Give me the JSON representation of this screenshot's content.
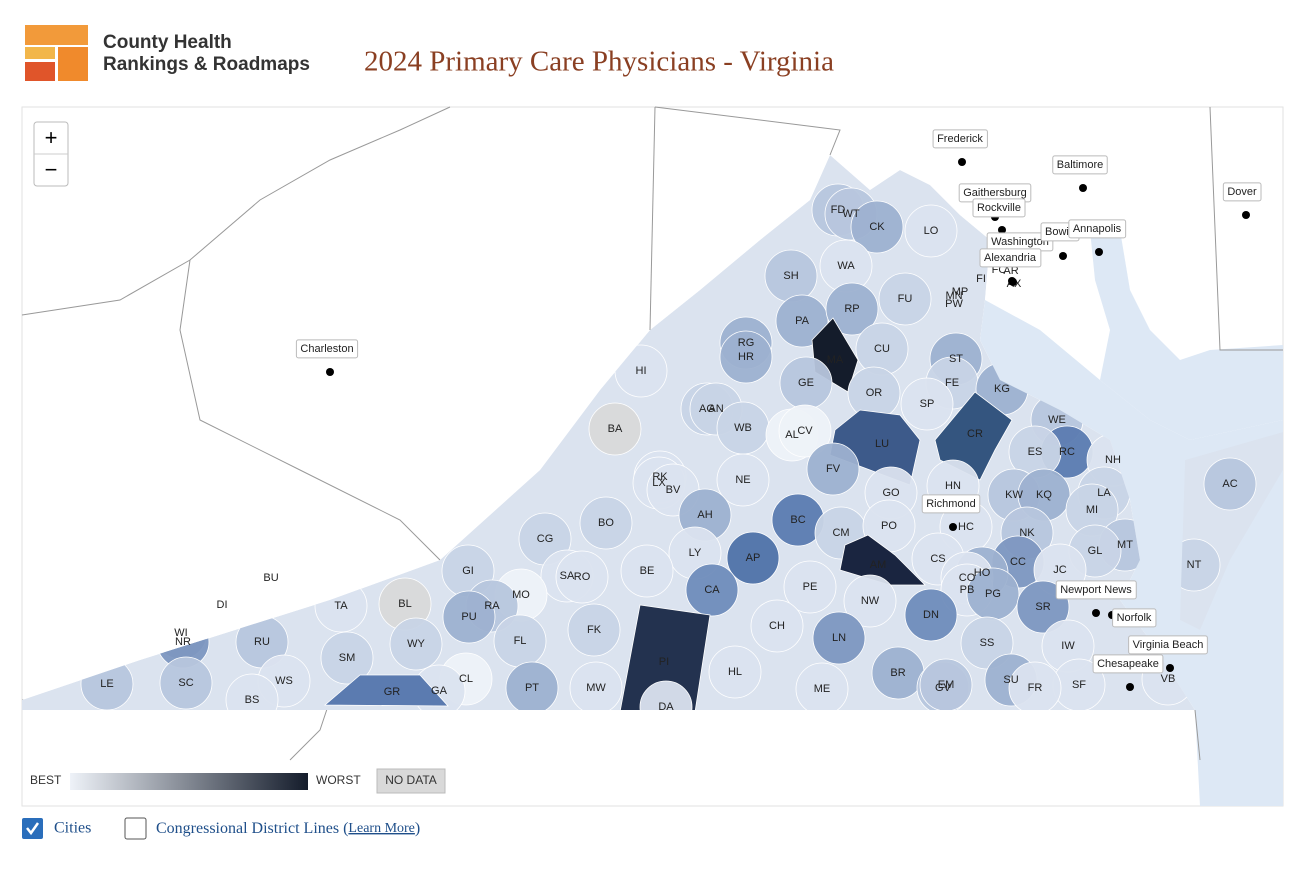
{
  "header": {
    "logo_line1": "County Health",
    "logo_line2": "Rankings & Roadmaps",
    "title": "2024 Primary Care Physicians - Virginia"
  },
  "map": {
    "zoom_in": "+",
    "zoom_out": "−",
    "counties": [
      {
        "label": "FD",
        "color": "#b7c6dd"
      },
      {
        "label": "WT",
        "color": "#b7c6dd"
      },
      {
        "label": "CK",
        "color": "#9db1d0"
      },
      {
        "label": "LO",
        "color": "#dbe3ef"
      },
      {
        "label": "SH",
        "color": "#b7c6dd"
      },
      {
        "label": "WA",
        "color": "#dbe3ef"
      },
      {
        "label": "FU",
        "color": "#c8d4e6"
      },
      {
        "label": "PA",
        "color": "#9db1d0"
      },
      {
        "label": "RP",
        "color": "#9db1d0"
      },
      {
        "label": "MA",
        "color": "#141c2b"
      },
      {
        "label": "CU",
        "color": "#c8d4e6"
      },
      {
        "label": "RG",
        "color": "#9db1d0"
      },
      {
        "label": "HR",
        "color": "#9db1d0"
      },
      {
        "label": "HI",
        "color": "#dbe3ef"
      },
      {
        "label": "GE",
        "color": "#b7c6dd"
      },
      {
        "label": "OR",
        "color": "#c8d4e6"
      },
      {
        "label": "ST",
        "color": "#9db1d0"
      },
      {
        "label": "FE",
        "color": "#c8d4e6"
      },
      {
        "label": "KG",
        "color": "#9db1d0"
      },
      {
        "label": "SP",
        "color": "#dbe3ef"
      },
      {
        "label": "BA",
        "color": "#d9d9d9"
      },
      {
        "label": "AG",
        "color": "#c8d4e6"
      },
      {
        "label": "AN",
        "color": "#c8d4e6"
      },
      {
        "label": "WB",
        "color": "#c8d4e6"
      },
      {
        "label": "AL",
        "color": "#eef2f8"
      },
      {
        "label": "CV",
        "color": "#eef2f8"
      },
      {
        "label": "LU",
        "color": "#3d5a8a"
      },
      {
        "label": "CR",
        "color": "#34557f"
      },
      {
        "label": "WE",
        "color": "#b7c6dd"
      },
      {
        "label": "RC",
        "color": "#5b7bb0"
      },
      {
        "label": "ES",
        "color": "#c8d4e6"
      },
      {
        "label": "NH",
        "color": "#dbe3ef"
      },
      {
        "label": "AC",
        "color": "#b7c6dd"
      },
      {
        "label": "FV",
        "color": "#9db1d0"
      },
      {
        "label": "NE",
        "color": "#dbe3ef"
      },
      {
        "label": "RK",
        "color": "#dbe3ef"
      },
      {
        "label": "LX",
        "color": "#dbe3ef"
      },
      {
        "label": "BV",
        "color": "#dbe3ef"
      },
      {
        "label": "HN",
        "color": "#dbe3ef"
      },
      {
        "label": "GO",
        "color": "#dbe3ef"
      },
      {
        "label": "KW",
        "color": "#b7c6dd"
      },
      {
        "label": "KQ",
        "color": "#9db1d0"
      },
      {
        "label": "LA",
        "color": "#c8d4e6"
      },
      {
        "label": "MI",
        "color": "#c8d4e6"
      },
      {
        "label": "AH",
        "color": "#9db1d0"
      },
      {
        "label": "BC",
        "color": "#5b7bb0"
      },
      {
        "label": "CM",
        "color": "#c8d4e6"
      },
      {
        "label": "PO",
        "color": "#dbe3ef"
      },
      {
        "label": "CG",
        "color": "#c8d4e6"
      },
      {
        "label": "BO",
        "color": "#c8d4e6"
      },
      {
        "label": "NK",
        "color": "#b7c6dd"
      },
      {
        "label": "HC",
        "color": "#dbe3ef"
      },
      {
        "label": "MT",
        "color": "#b7c6dd"
      },
      {
        "label": "GL",
        "color": "#c8d4e6"
      },
      {
        "label": "LY",
        "color": "#dbe3ef"
      },
      {
        "label": "AP",
        "color": "#4f72a8"
      },
      {
        "label": "AM",
        "color": "#1a2540"
      },
      {
        "label": "CS",
        "color": "#dbe3ef"
      },
      {
        "label": "CC",
        "color": "#7d97c0"
      },
      {
        "label": "JC",
        "color": "#dbe3ef"
      },
      {
        "label": "NT",
        "color": "#c8d4e6"
      },
      {
        "label": "BE",
        "color": "#dbe3ef"
      },
      {
        "label": "GI",
        "color": "#c8d4e6"
      },
      {
        "label": "SA",
        "color": "#dbe3ef"
      },
      {
        "label": "RO",
        "color": "#dbe3ef"
      },
      {
        "label": "HO",
        "color": "#9db1d0"
      },
      {
        "label": "CO",
        "color": "#dbe3ef"
      },
      {
        "label": "PB",
        "color": "#dbe3ef"
      },
      {
        "label": "PG",
        "color": "#9db1d0"
      },
      {
        "label": "BU",
        "color": "#b7c6dd"
      },
      {
        "label": "CA",
        "color": "#6f8cbb"
      },
      {
        "label": "PE",
        "color": "#dbe3ef"
      },
      {
        "label": "MO",
        "color": "#eef2f8"
      },
      {
        "label": "NW",
        "color": "#dbe3ef"
      },
      {
        "label": "SR",
        "color": "#7d97c0"
      },
      {
        "label": "DI",
        "color": "#9db1d0"
      },
      {
        "label": "TA",
        "color": "#dbe3ef"
      },
      {
        "label": "BL",
        "color": "#d9d9d9"
      },
      {
        "label": "RA",
        "color": "#b7c6dd"
      },
      {
        "label": "PU",
        "color": "#9db1d0"
      },
      {
        "label": "DN",
        "color": "#6f8cbb"
      },
      {
        "label": "FK",
        "color": "#c8d4e6"
      },
      {
        "label": "CH",
        "color": "#dbe3ef"
      },
      {
        "label": "WI",
        "color": "#7d97c0"
      },
      {
        "label": "NR",
        "color": "#7d97c0"
      },
      {
        "label": "RU",
        "color": "#b7c6dd"
      },
      {
        "label": "WY",
        "color": "#c8d4e6"
      },
      {
        "label": "FL",
        "color": "#c8d4e6"
      },
      {
        "label": "LN",
        "color": "#7d97c0"
      },
      {
        "label": "SS",
        "color": "#c8d4e6"
      },
      {
        "label": "IW",
        "color": "#dbe3ef"
      },
      {
        "label": "SM",
        "color": "#c8d4e6"
      },
      {
        "label": "PI",
        "color": "#23324f"
      },
      {
        "label": "HL",
        "color": "#dbe3ef"
      },
      {
        "label": "BR",
        "color": "#9db1d0"
      },
      {
        "label": "SU",
        "color": "#9db1d0"
      },
      {
        "label": "SF",
        "color": "#dbe3ef"
      },
      {
        "label": "VB",
        "color": "#dbe3ef"
      },
      {
        "label": "LE",
        "color": "#b7c6dd"
      },
      {
        "label": "SC",
        "color": "#b7c6dd"
      },
      {
        "label": "WS",
        "color": "#dbe3ef"
      },
      {
        "label": "CL",
        "color": "#eef2f8"
      },
      {
        "label": "GA",
        "color": "#dbe3ef"
      },
      {
        "label": "PT",
        "color": "#9db1d0"
      },
      {
        "label": "MW",
        "color": "#dbe3ef"
      },
      {
        "label": "ME",
        "color": "#dbe3ef"
      },
      {
        "label": "GV",
        "color": "#b7c6dd"
      },
      {
        "label": "EM",
        "color": "#b7c6dd"
      },
      {
        "label": "FR",
        "color": "#dbe3ef"
      },
      {
        "label": "GR",
        "color": "#5b7bb0"
      },
      {
        "label": "BS",
        "color": "#dbe3ef"
      },
      {
        "label": "DA",
        "color": "#dbe3ef"
      },
      {
        "label": "MN",
        "color": "#b7c6dd"
      },
      {
        "label": "MP",
        "color": "#b7c6dd"
      },
      {
        "label": "PW",
        "color": "#dbe3ef"
      },
      {
        "label": "FI",
        "color": "#dbe3ef"
      },
      {
        "label": "AR",
        "color": "#dbe3ef"
      },
      {
        "label": "FC",
        "color": "#dbe3ef"
      },
      {
        "label": "AX",
        "color": "#dbe3ef"
      }
    ],
    "cities": [
      {
        "name": "Frederick"
      },
      {
        "name": "Baltimore"
      },
      {
        "name": "Gaithersburg"
      },
      {
        "name": "Rockville"
      },
      {
        "name": "Washington"
      },
      {
        "name": "Alexandria"
      },
      {
        "name": "Bowie"
      },
      {
        "name": "Annapolis"
      },
      {
        "name": "Dover"
      },
      {
        "name": "Charleston"
      },
      {
        "name": "Richmond"
      },
      {
        "name": "Newport News"
      },
      {
        "name": "Norfolk"
      },
      {
        "name": "Virginia Beach"
      },
      {
        "name": "Chesapeake"
      }
    ],
    "legend": {
      "best": "BEST",
      "worst": "WORST",
      "no_data": "NO DATA"
    }
  },
  "controls": {
    "cities": "Cities",
    "cities_checked": true,
    "districts": "Congressional District Lines (",
    "learn_more": "Learn More",
    "close": ")"
  }
}
